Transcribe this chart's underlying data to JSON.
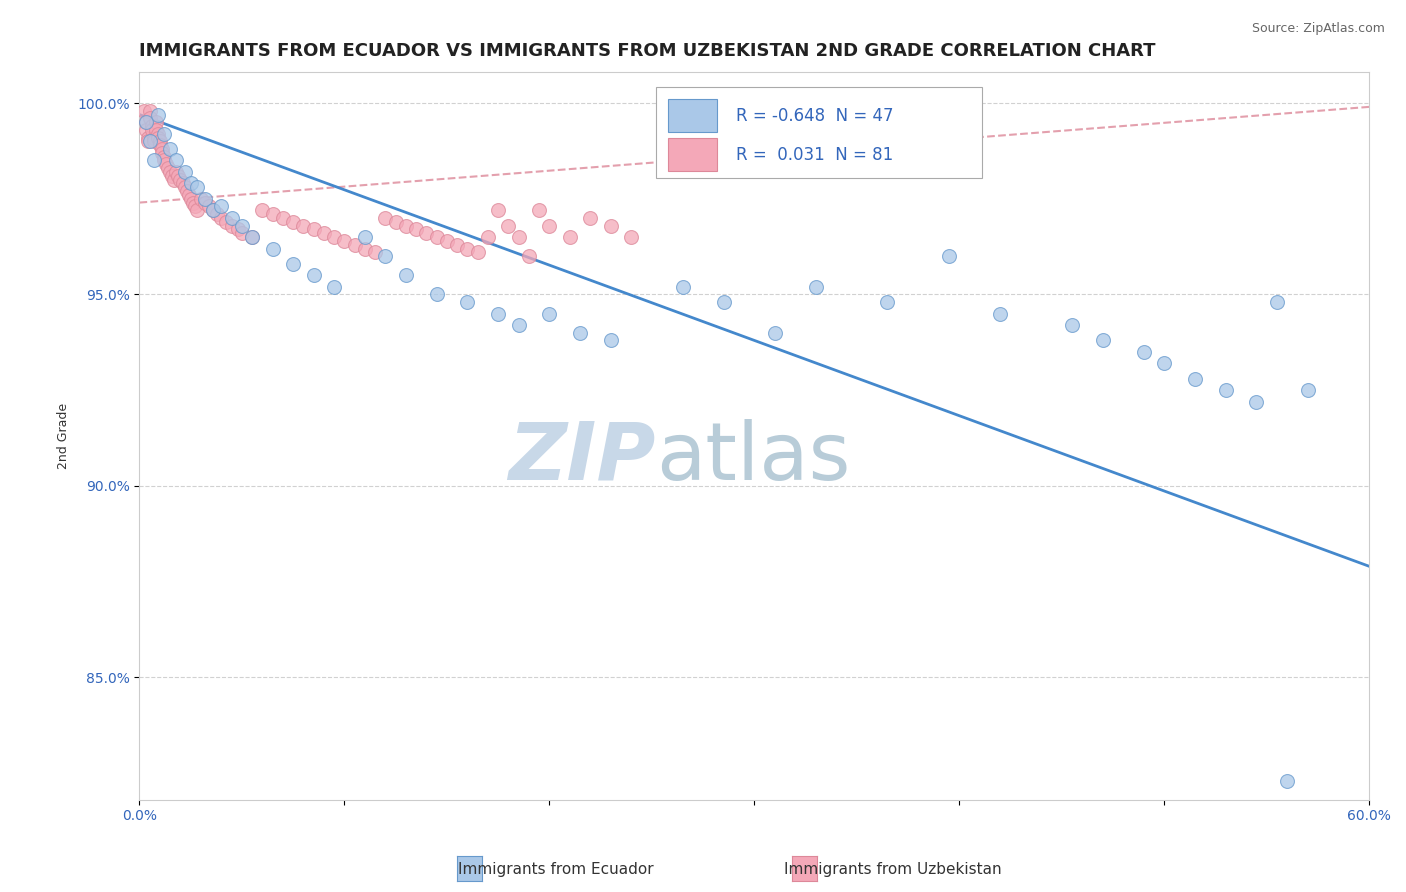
{
  "title": "IMMIGRANTS FROM ECUADOR VS IMMIGRANTS FROM UZBEKISTAN 2ND GRADE CORRELATION CHART",
  "source": "Source: ZipAtlas.com",
  "ylabel": "2nd Grade",
  "watermark_zip": "ZIP",
  "watermark_atlas": "atlas",
  "xlim": [
    0.0,
    0.6
  ],
  "ylim": [
    0.818,
    1.008
  ],
  "yticks": [
    0.85,
    0.9,
    0.95,
    1.0
  ],
  "yticklabels": [
    "85.0%",
    "90.0%",
    "95.0%",
    "100.0%"
  ],
  "ecuador_color": "#aac8e8",
  "uzbekistan_color": "#f4a8b8",
  "ecuador_edge": "#6699cc",
  "uzbekistan_edge": "#dd8899",
  "ecuador_line_color": "#4488cc",
  "uzbekistan_line_color": "#dd8899",
  "ecuador_R": -0.648,
  "ecuador_N": 47,
  "uzbekistan_R": 0.031,
  "uzbekistan_N": 81,
  "legend_label_ecuador": "Immigrants from Ecuador",
  "legend_label_uzbekistan": "Immigrants from Uzbekistan",
  "ecuador_scatter_x": [
    0.003,
    0.005,
    0.007,
    0.009,
    0.012,
    0.015,
    0.018,
    0.022,
    0.025,
    0.028,
    0.032,
    0.036,
    0.04,
    0.045,
    0.05,
    0.055,
    0.065,
    0.075,
    0.085,
    0.095,
    0.11,
    0.12,
    0.13,
    0.145,
    0.16,
    0.175,
    0.185,
    0.2,
    0.215,
    0.23,
    0.265,
    0.285,
    0.31,
    0.33,
    0.365,
    0.395,
    0.42,
    0.455,
    0.47,
    0.49,
    0.5,
    0.515,
    0.53,
    0.545,
    0.555,
    0.57,
    0.56
  ],
  "ecuador_scatter_y": [
    0.995,
    0.99,
    0.985,
    0.997,
    0.992,
    0.988,
    0.985,
    0.982,
    0.979,
    0.978,
    0.975,
    0.972,
    0.973,
    0.97,
    0.968,
    0.965,
    0.962,
    0.958,
    0.955,
    0.952,
    0.965,
    0.96,
    0.955,
    0.95,
    0.948,
    0.945,
    0.942,
    0.945,
    0.94,
    0.938,
    0.952,
    0.948,
    0.94,
    0.952,
    0.948,
    0.96,
    0.945,
    0.942,
    0.938,
    0.935,
    0.932,
    0.928,
    0.925,
    0.922,
    0.948,
    0.925,
    0.823
  ],
  "uzbekistan_scatter_x": [
    0.002,
    0.003,
    0.003,
    0.004,
    0.004,
    0.005,
    0.005,
    0.006,
    0.006,
    0.007,
    0.007,
    0.008,
    0.008,
    0.009,
    0.009,
    0.01,
    0.01,
    0.011,
    0.011,
    0.012,
    0.012,
    0.013,
    0.014,
    0.015,
    0.016,
    0.017,
    0.018,
    0.019,
    0.02,
    0.021,
    0.022,
    0.023,
    0.024,
    0.025,
    0.026,
    0.027,
    0.028,
    0.03,
    0.032,
    0.034,
    0.036,
    0.038,
    0.04,
    0.042,
    0.045,
    0.048,
    0.05,
    0.055,
    0.06,
    0.065,
    0.07,
    0.075,
    0.08,
    0.085,
    0.09,
    0.095,
    0.1,
    0.105,
    0.11,
    0.115,
    0.12,
    0.125,
    0.13,
    0.135,
    0.14,
    0.145,
    0.15,
    0.155,
    0.16,
    0.165,
    0.17,
    0.175,
    0.18,
    0.185,
    0.19,
    0.195,
    0.2,
    0.21,
    0.22,
    0.23,
    0.24
  ],
  "uzbekistan_scatter_y": [
    0.998,
    0.995,
    0.993,
    0.991,
    0.99,
    0.998,
    0.996,
    0.994,
    0.993,
    0.991,
    0.99,
    0.995,
    0.993,
    0.992,
    0.991,
    0.99,
    0.989,
    0.988,
    0.987,
    0.986,
    0.985,
    0.984,
    0.983,
    0.982,
    0.981,
    0.98,
    0.982,
    0.981,
    0.98,
    0.979,
    0.978,
    0.977,
    0.976,
    0.975,
    0.974,
    0.973,
    0.972,
    0.975,
    0.974,
    0.973,
    0.972,
    0.971,
    0.97,
    0.969,
    0.968,
    0.967,
    0.966,
    0.965,
    0.972,
    0.971,
    0.97,
    0.969,
    0.968,
    0.967,
    0.966,
    0.965,
    0.964,
    0.963,
    0.962,
    0.961,
    0.97,
    0.969,
    0.968,
    0.967,
    0.966,
    0.965,
    0.964,
    0.963,
    0.962,
    0.961,
    0.965,
    0.972,
    0.968,
    0.965,
    0.96,
    0.972,
    0.968,
    0.965,
    0.97,
    0.968,
    0.965
  ],
  "background_color": "#ffffff",
  "grid_color": "#cccccc",
  "title_fontsize": 13,
  "axis_label_fontsize": 9,
  "tick_fontsize": 10,
  "legend_fontsize": 12,
  "watermark_fontsize": 58
}
